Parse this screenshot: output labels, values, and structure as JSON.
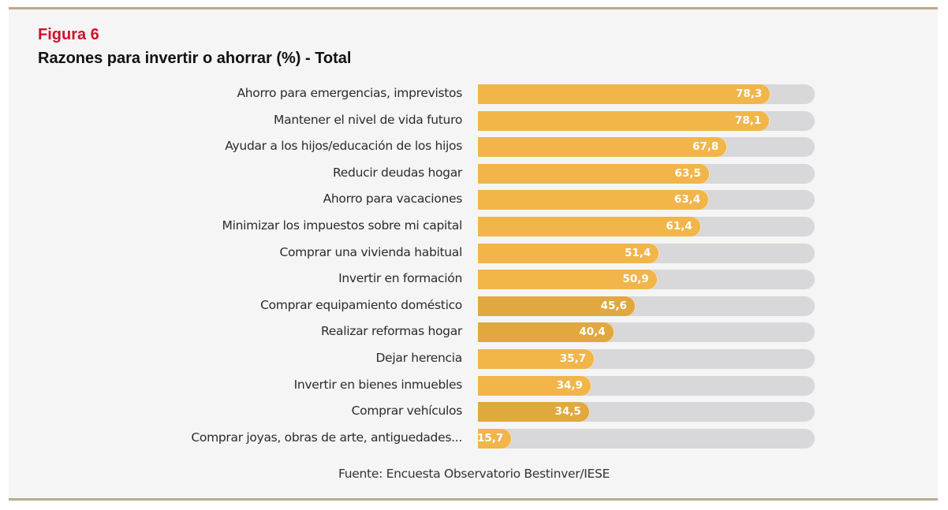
{
  "figure": {
    "label": "Figura 6",
    "title": "Razones para invertir o ahorrar (%) - Total",
    "source": "Fuente: Encuesta Observatorio Bestinver/IESE"
  },
  "colors": {
    "figure_label": "#d0102a",
    "bar": "#f1b54a",
    "track": "#d8d7d9",
    "rule": "#bfa88c"
  },
  "chart_data": {
    "type": "bar",
    "orientation": "horizontal",
    "title": "Razones para invertir o ahorrar (%) - Total",
    "xlabel": "",
    "ylabel": "",
    "unit": "%",
    "grid": false,
    "legend": "none",
    "categories": [
      "Ahorro para emergencias, imprevistos",
      "Mantener el nivel de vida futuro",
      "Ayudar a los hijos/educación de los hijos",
      "Reducir deudas hogar",
      "Ahorro para vacaciones",
      "Minimizar los impuestos sobre mi capital",
      "Comprar una vivienda habitual",
      "Invertir en formación",
      "Comprar equipamiento doméstico",
      "Realizar reformas hogar",
      "Dejar herencia",
      "Invertir en bienes inmuebles",
      "Comprar vehículos",
      "Comprar joyas, obras de arte, antiguedades..."
    ],
    "values": [
      78.3,
      78.1,
      67.8,
      63.5,
      63.4,
      61.4,
      51.4,
      50.9,
      45.6,
      40.4,
      35.7,
      34.9,
      34.5,
      15.7
    ],
    "value_labels": [
      "78,3",
      "78,1",
      "67,8",
      "63,5",
      "63,4",
      "61,4",
      "51,4",
      "50,9",
      "45,6",
      "40,4",
      "35,7",
      "34,9",
      "34,5",
      "15,7"
    ],
    "xlim": [
      0,
      100
    ]
  }
}
